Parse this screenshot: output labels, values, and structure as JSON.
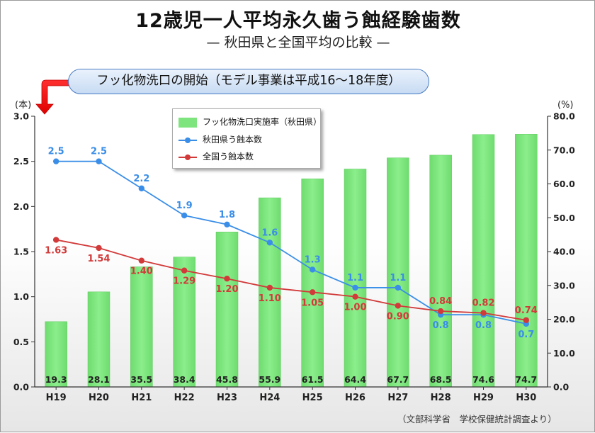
{
  "chart_data": {
    "type": "bar+line",
    "title": "12歳児一人平均永久歯う蝕経験歯数",
    "subtitle": "— 秋田県と全国平均の比較 —",
    "annotation": "フッ化物洗口の開始（モデル事業は平成16〜18年度）",
    "source": "（文部科学省　学校保健統計調査より）",
    "categories": [
      "H19",
      "H20",
      "H21",
      "H22",
      "H23",
      "H24",
      "H25",
      "H26",
      "H27",
      "H28",
      "H29",
      "H30"
    ],
    "left_axis": {
      "unit_label": "(本)",
      "ylim": [
        0,
        3.0
      ],
      "ticks": [
        "0.0",
        "0.5",
        "1.0",
        "1.5",
        "2.0",
        "2.5",
        "3.0"
      ]
    },
    "right_axis": {
      "unit_label": "(%)",
      "ylim": [
        0,
        80
      ],
      "ticks": [
        "0.0",
        "10.0",
        "20.0",
        "30.0",
        "40.0",
        "50.0",
        "60.0",
        "70.0",
        "80.0"
      ]
    },
    "bars": {
      "name": "フッ化物洗口実施率（秋田県）",
      "axis": "right",
      "color": "#7ee57e",
      "values": [
        19.3,
        28.1,
        35.5,
        38.4,
        45.8,
        55.9,
        61.5,
        64.4,
        67.7,
        68.5,
        74.6,
        74.7
      ],
      "labels": [
        "19.3",
        "28.1",
        "35.5",
        "38.4",
        "45.8",
        "55.9",
        "61.5",
        "64.4",
        "67.7",
        "68.5",
        "74.6",
        "74.7"
      ]
    },
    "series": [
      {
        "name": "秋田県う蝕本数",
        "axis": "left",
        "color": "#3a8ee8",
        "values": [
          2.5,
          2.5,
          2.2,
          1.9,
          1.8,
          1.6,
          1.3,
          1.1,
          1.1,
          0.8,
          0.8,
          0.7
        ],
        "labels": [
          "2.5",
          "2.5",
          "2.2",
          "1.9",
          "1.8",
          "1.6",
          "1.3",
          "1.1",
          "1.1",
          "0.8",
          "0.8",
          "0.7"
        ]
      },
      {
        "name": "全国う蝕本数",
        "axis": "left",
        "color": "#d23a3a",
        "values": [
          1.63,
          1.54,
          1.4,
          1.29,
          1.2,
          1.1,
          1.05,
          1.0,
          0.9,
          0.84,
          0.82,
          0.74
        ],
        "labels": [
          "1.63",
          "1.54",
          "1.40",
          "1.29",
          "1.20",
          "1.10",
          "1.05",
          "1.00",
          "0.90",
          "0.84",
          "0.82",
          "0.74"
        ]
      }
    ],
    "legend_position": "top-center",
    "grid": false
  }
}
